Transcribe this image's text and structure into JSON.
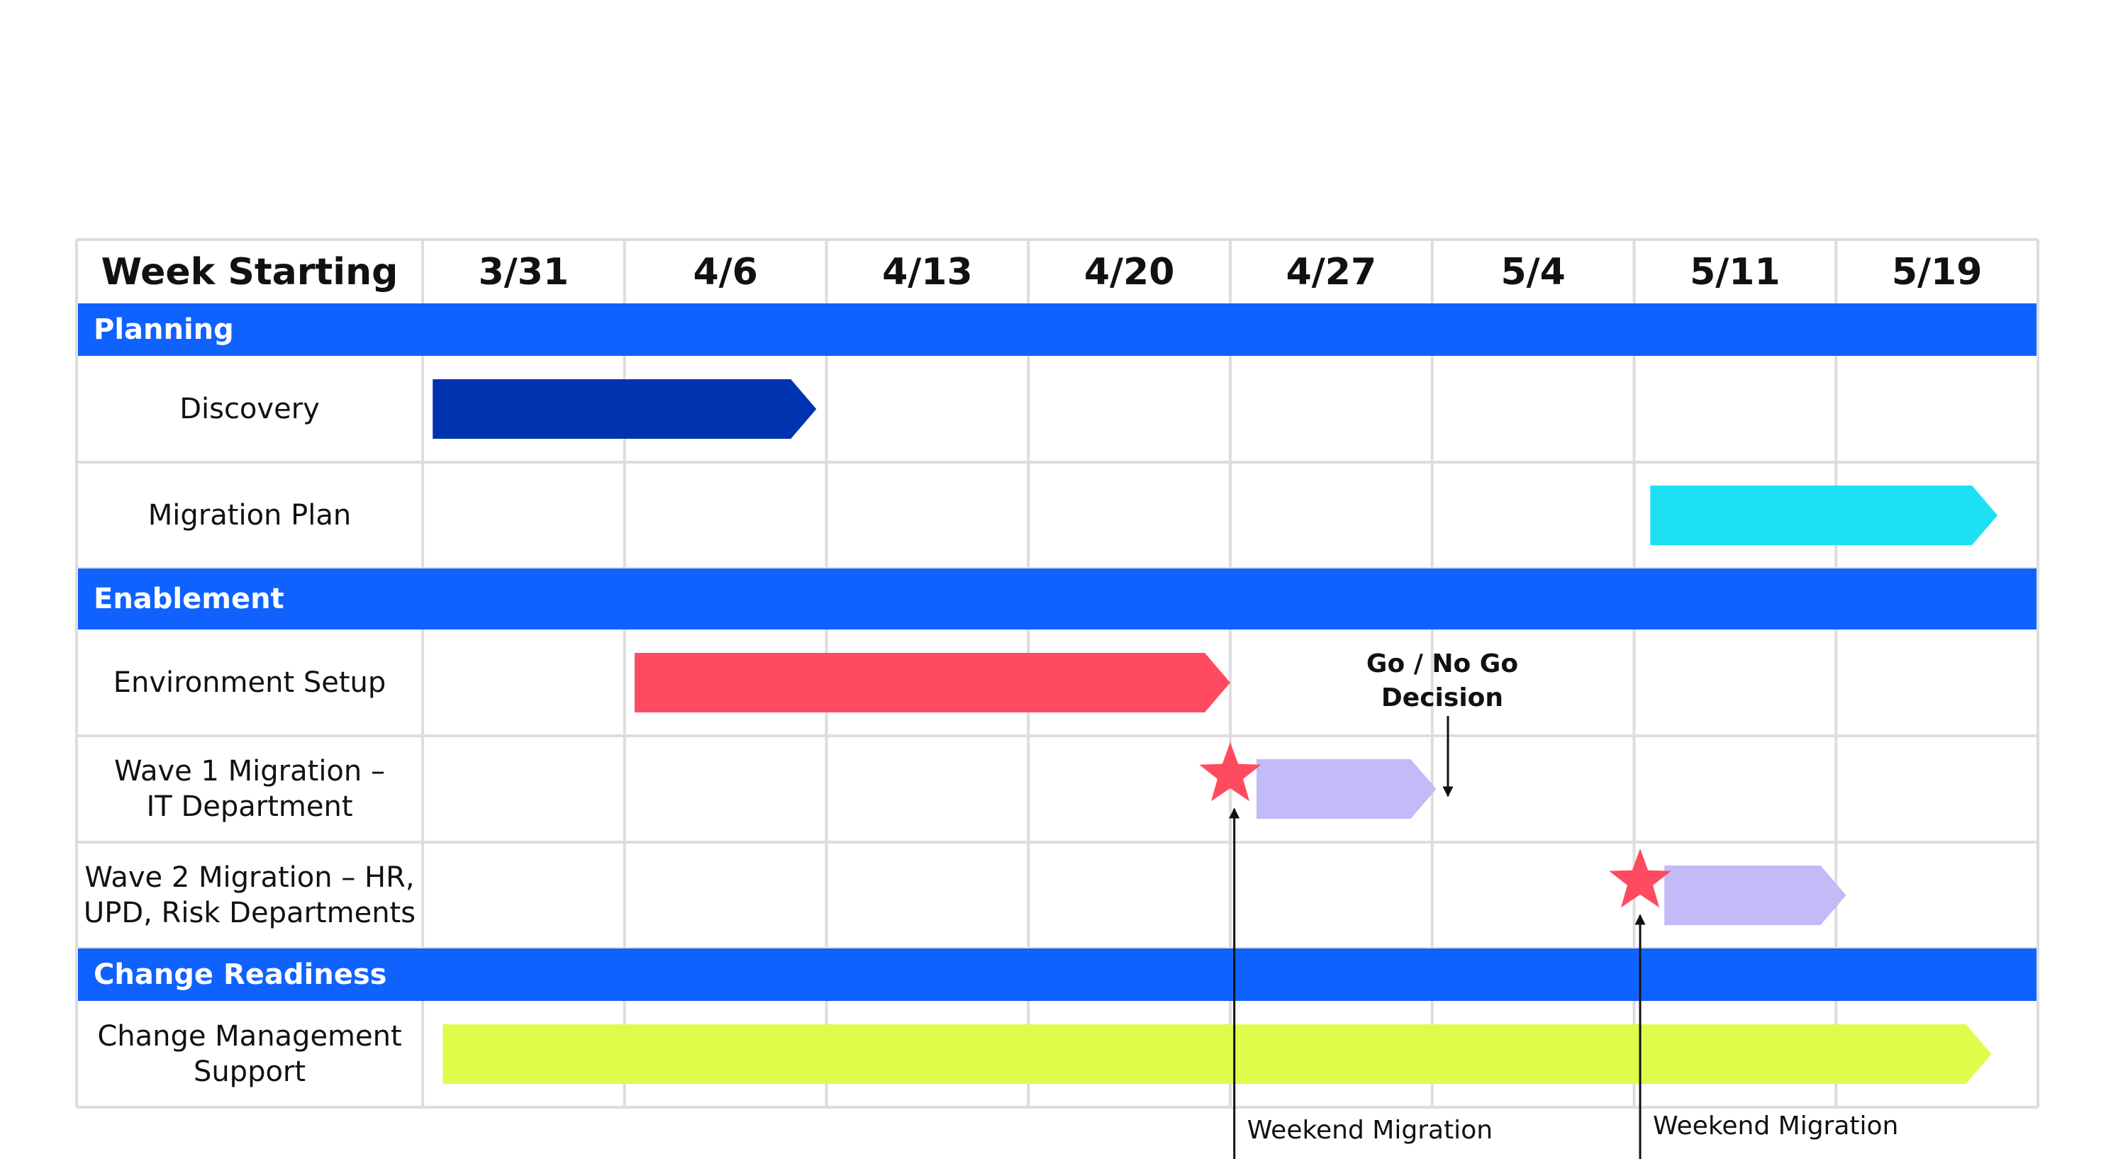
{
  "chart_data": {
    "type": "gantt",
    "header_label": "Week Starting",
    "weeks": [
      "3/31",
      "4/6",
      "4/13",
      "4/20",
      "4/27",
      "5/4",
      "5/11",
      "5/19"
    ],
    "rows": [
      {
        "kind": "section",
        "label": "Planning"
      },
      {
        "kind": "task",
        "label": [
          "Discovery"
        ],
        "bar": {
          "start_week": 0.05,
          "end_week": 1.95,
          "color": "#0033B0"
        }
      },
      {
        "kind": "task",
        "label": [
          "Migration Plan"
        ],
        "bar": {
          "start_week": 6.08,
          "end_week": 7.8,
          "color": "#1DE1F2"
        }
      },
      {
        "kind": "section",
        "label": "Enablement"
      },
      {
        "kind": "task",
        "label": [
          "Environment Setup"
        ],
        "bar": {
          "start_week": 1.05,
          "end_week": 4.0,
          "color": "#FF4B5F"
        }
      },
      {
        "kind": "task",
        "label": [
          "Wave 1 Migration –",
          "IT Department"
        ],
        "bar": {
          "start_week": 4.13,
          "end_week": 5.02,
          "color": "#C3BAF8"
        },
        "star_week": 4.0
      },
      {
        "kind": "task",
        "label": [
          "Wave 2 Migration – HR,",
          "UPD, Risk  Departments"
        ],
        "bar": {
          "start_week": 6.15,
          "end_week": 7.05,
          "color": "#C3BAF8"
        },
        "star_week": 6.03
      },
      {
        "kind": "section",
        "label": "Change Readiness"
      },
      {
        "kind": "task",
        "label": [
          "Change Management",
          "Support"
        ],
        "bar": {
          "start_week": 0.1,
          "end_week": 7.77,
          "color": "#DFFC4B"
        }
      }
    ],
    "annotations": [
      {
        "text": [
          "Go / No Go",
          "Decision"
        ],
        "week": 5.05,
        "row": 5
      },
      {
        "text": [
          "Weekend  Migration"
        ],
        "week": 4.02,
        "row": 5
      },
      {
        "text": [
          "Weekend  Migration"
        ],
        "week": 6.03,
        "row": 6
      }
    ],
    "colors": {
      "section": "#0F62FE",
      "star": "#FF4B5F",
      "grid": "#DDDDDD",
      "text": "#111111"
    }
  }
}
